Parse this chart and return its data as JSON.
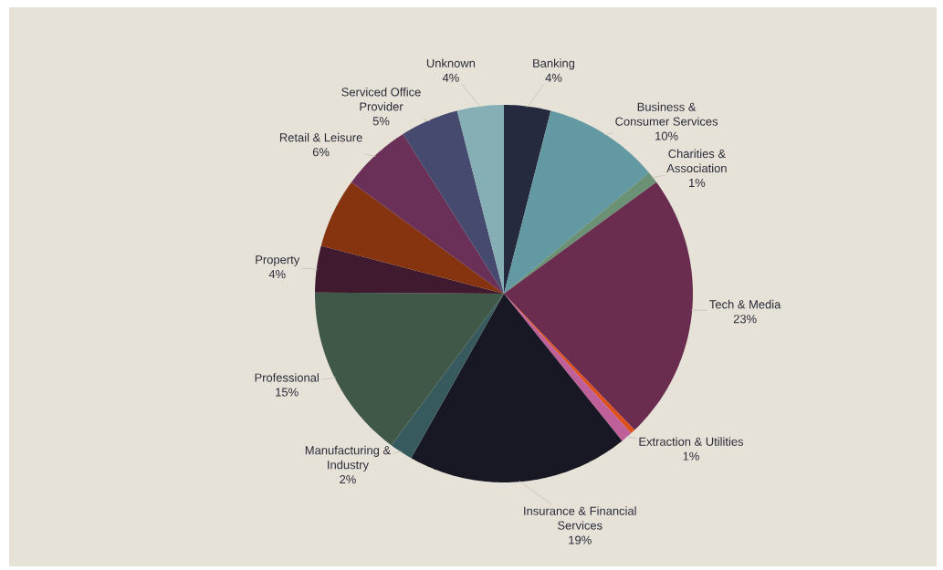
{
  "chart_data": {
    "type": "pie",
    "categories": [
      "Banking",
      "Business & Consumer Services",
      "Charities & Association",
      "Tech & Media",
      null,
      "Extraction & Utilities",
      "Insurance & Financial Services",
      "Manufacturing & Industry",
      "Professional",
      "Property",
      null,
      "Retail & Leisure",
      "Serviced Office Provider",
      "Unknown"
    ],
    "values": [
      4,
      10,
      1,
      23,
      0.4,
      1,
      19,
      2,
      15,
      4,
      6,
      6,
      5,
      4
    ],
    "value_labels": [
      "4%",
      "10%",
      "1%",
      "23%",
      null,
      "1%",
      "19%",
      "2%",
      "15%",
      "4%",
      null,
      "6%",
      "5%",
      "4%"
    ],
    "colors": [
      "#262a3f",
      "#6399a3",
      "#6b9274",
      "#6a2d50",
      "#e0501a",
      "#c0609a",
      "#181824",
      "#375a5e",
      "#3f5848",
      "#401b30",
      "#86330f",
      "#6a3058",
      "#464a6e",
      "#85afb5"
    ]
  }
}
